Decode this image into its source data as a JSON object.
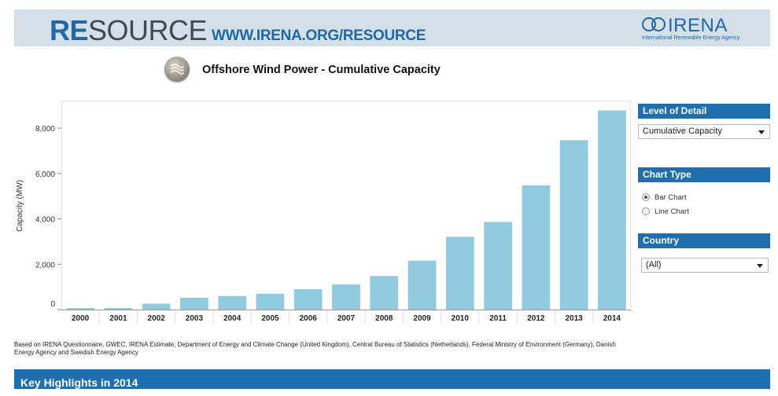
{
  "banner": {
    "brand_re": "RE",
    "brand_source": "SOURCE",
    "url": "WWW.IRENA.ORG/RESOURCE",
    "logo_name": "IRENA",
    "logo_sub": "International Renewable Energy Agency"
  },
  "chart_title": "Offshore Wind Power - Cumulative Capacity",
  "filters": {
    "level_of_detail": {
      "label": "Level of Detail",
      "selected": "Cumulative Capacity"
    },
    "chart_type": {
      "label": "Chart Type",
      "options": [
        "Bar Chart",
        "Line Chart"
      ],
      "selected": "Bar Chart"
    },
    "country": {
      "label": "Country",
      "selected": "(All)"
    }
  },
  "source_note": "Based on IRENA Questionnaire, GWEC, IRENA Estimate, Department of Energy and Climate Change (United Kingdom), Central Bureau of Statistics (Netherlands), Federal Ministry of Environment (Germany), Danish Energy Agency and Swedish Energy Agency",
  "footer": {
    "title": "Key Highlights in 2014"
  },
  "colors": {
    "bar": "#92cbe0",
    "accent": "#1f6fae",
    "banner_bg": "#d5dfe8"
  },
  "chart_data": {
    "type": "bar",
    "title": "Offshore Wind Power - Cumulative Capacity",
    "xlabel": "",
    "ylabel": "Capacity (MW)",
    "categories": [
      "2000",
      "2001",
      "2002",
      "2003",
      "2004",
      "2005",
      "2006",
      "2007",
      "2008",
      "2009",
      "2010",
      "2011",
      "2012",
      "2013",
      "2014"
    ],
    "values": [
      67,
      69,
      260,
      520,
      600,
      700,
      900,
      1110,
      1480,
      2160,
      3210,
      3860,
      5480,
      7470,
      8780
    ],
    "ylim": [
      0,
      9000
    ],
    "yticks": [
      0,
      2000,
      4000,
      6000,
      8000
    ],
    "ytick_labels": [
      "0",
      "2,000",
      "4,000",
      "6,000",
      "8,000"
    ],
    "grid": false,
    "legend": "none"
  }
}
